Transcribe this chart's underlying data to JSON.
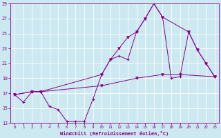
{
  "xlabel": "Windchill (Refroidissement éolien,°C)",
  "bg_color": "#cce8f0",
  "line_color": "#880088",
  "xlim": [
    -0.5,
    23.5
  ],
  "ylim": [
    13,
    29
  ],
  "yticks": [
    13,
    15,
    17,
    19,
    21,
    23,
    25,
    27,
    29
  ],
  "xticks": [
    0,
    1,
    2,
    3,
    4,
    5,
    6,
    7,
    8,
    9,
    10,
    11,
    12,
    13,
    14,
    15,
    16,
    17,
    18,
    19,
    20,
    21,
    22,
    23
  ],
  "series1_x": [
    0,
    1,
    2,
    3,
    4,
    5,
    6,
    7,
    8,
    9,
    10,
    11,
    12,
    13,
    14,
    15,
    16,
    17,
    18,
    19,
    20,
    21,
    22,
    23
  ],
  "series1_y": [
    16.8,
    15.8,
    17.2,
    17.2,
    15.2,
    14.8,
    13.2,
    13.2,
    13.2,
    16.2,
    19.5,
    21.5,
    22.0,
    21.5,
    25.2,
    27.0,
    29.0,
    27.2,
    19.0,
    19.2,
    25.2,
    22.8,
    21.0,
    19.2
  ],
  "series2_x": [
    0,
    2,
    3,
    10,
    11,
    12,
    13,
    14,
    15,
    16,
    17,
    20,
    21,
    22,
    23
  ],
  "series2_y": [
    16.8,
    17.2,
    17.2,
    19.5,
    21.5,
    23.0,
    24.5,
    25.2,
    27.0,
    29.0,
    27.2,
    25.2,
    22.8,
    21.0,
    19.2
  ],
  "series3_x": [
    0,
    2,
    3,
    10,
    14,
    17,
    19,
    23
  ],
  "series3_y": [
    16.8,
    17.2,
    17.2,
    18.0,
    19.0,
    19.5,
    19.5,
    19.2
  ]
}
